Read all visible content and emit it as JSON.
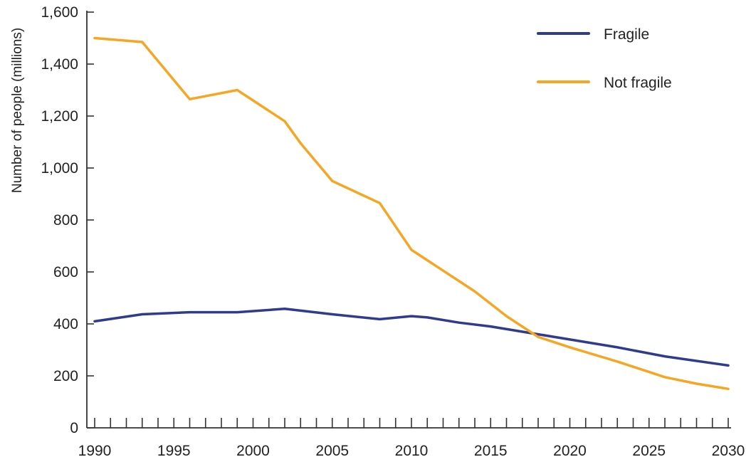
{
  "chart_data": {
    "type": "line",
    "title": "",
    "xlabel": "",
    "ylabel": "Number of people (millions)",
    "xlim": [
      1990,
      2030
    ],
    "ylim": [
      0,
      1600
    ],
    "x_ticks": [
      1990,
      1995,
      2000,
      2005,
      2010,
      2015,
      2020,
      2025,
      2030
    ],
    "x_tick_labels": [
      "1990",
      "1995",
      "2000",
      "2005",
      "2010",
      "2015",
      "2020",
      "2025",
      "2030"
    ],
    "x_minor_step": 1,
    "y_ticks": [
      0,
      200,
      400,
      600,
      800,
      1000,
      1200,
      1400,
      1600
    ],
    "y_tick_labels": [
      "0",
      "200",
      "400",
      "600",
      "800",
      "1,000",
      "1,200",
      "1,400",
      "1,600"
    ],
    "grid": false,
    "legend_position": "top-right",
    "series": [
      {
        "name": "Fragile",
        "color": "#2e3b8e",
        "x": [
          1990,
          1993,
          1996,
          1999,
          2002,
          2005,
          2008,
          2010,
          2011,
          2013,
          2015,
          2018,
          2020,
          2023,
          2026,
          2030
        ],
        "values": [
          410,
          437,
          445,
          445,
          458,
          437,
          418,
          430,
          425,
          405,
          390,
          360,
          340,
          310,
          275,
          240
        ]
      },
      {
        "name": "Not fragile",
        "color": "#f5a623",
        "x": [
          1990,
          1993,
          1996,
          1999,
          2002,
          2003,
          2005,
          2008,
          2010,
          2011,
          2012,
          2014,
          2016,
          2018,
          2020,
          2023,
          2026,
          2028,
          2030
        ],
        "values": [
          1500,
          1485,
          1265,
          1300,
          1180,
          1095,
          950,
          865,
          685,
          645,
          605,
          525,
          430,
          350,
          310,
          255,
          195,
          170,
          150
        ]
      }
    ]
  }
}
